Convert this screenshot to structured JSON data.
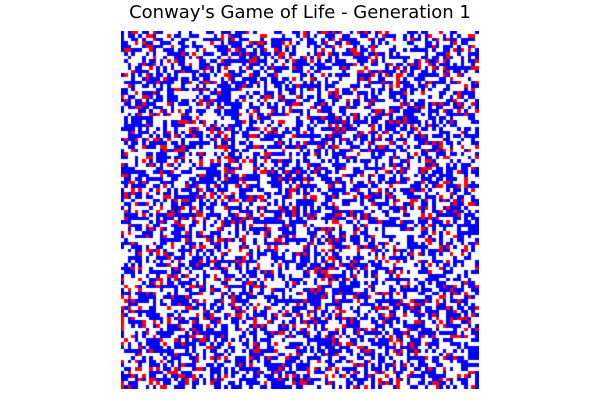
{
  "title": "Conway's Game of Life - Generation 1",
  "board": {
    "rows": 100,
    "cols": 100,
    "seed": 1,
    "legend": {
      "dead": {
        "code": 0,
        "color": "#ffffff"
      },
      "alive": {
        "code": 1,
        "color": "#0000ff"
      },
      "changed": {
        "code": 2,
        "color": "#ff0000"
      }
    },
    "distribution": {
      "dead": 0.44,
      "alive": 0.44,
      "changed": 0.12
    }
  }
}
